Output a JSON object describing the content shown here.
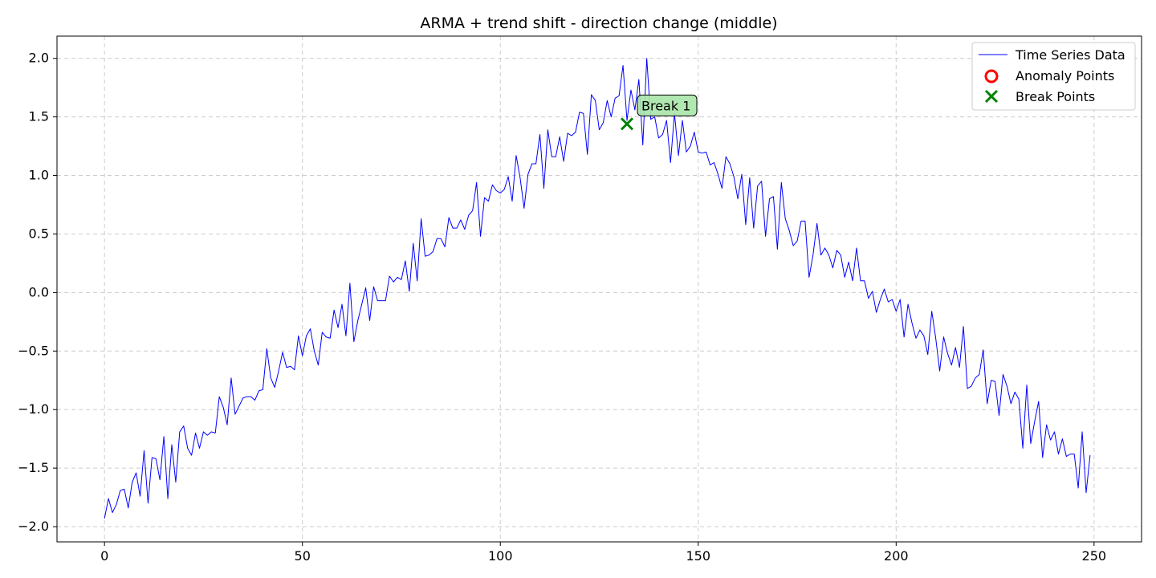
{
  "chart_data": {
    "type": "line",
    "title": "ARMA + trend shift - direction change (middle)",
    "xlabel": "",
    "ylabel": "",
    "xlim": [
      -12,
      262
    ],
    "ylim": [
      -2.13,
      2.19
    ],
    "grid": true,
    "legend_position": "top-right",
    "x_ticks": [
      0,
      50,
      100,
      150,
      200,
      250
    ],
    "x_tick_labels": [
      "0",
      "50",
      "100",
      "150",
      "200",
      "250"
    ],
    "y_ticks": [
      -2.0,
      -1.5,
      -1.0,
      -0.5,
      0.0,
      0.5,
      1.0,
      1.5,
      2.0
    ],
    "y_tick_labels": [
      "−2.0",
      "−1.5",
      "−1.0",
      "−0.5",
      "0.0",
      "0.5",
      "1.0",
      "1.5",
      "2.0"
    ],
    "series": [
      {
        "name": "Time Series Data",
        "color": "#0000ff",
        "x_start": 0,
        "x_step": 1,
        "values": [
          -1.93,
          -1.76,
          -1.88,
          -1.81,
          -1.69,
          -1.68,
          -1.84,
          -1.62,
          -1.54,
          -1.74,
          -1.35,
          -1.8,
          -1.41,
          -1.42,
          -1.6,
          -1.23,
          -1.76,
          -1.3,
          -1.62,
          -1.19,
          -1.14,
          -1.33,
          -1.39,
          -1.2,
          -1.33,
          -1.19,
          -1.22,
          -1.19,
          -1.2,
          -0.89,
          -0.98,
          -1.13,
          -0.73,
          -1.04,
          -0.97,
          -0.9,
          -0.89,
          -0.89,
          -0.92,
          -0.84,
          -0.83,
          -0.48,
          -0.73,
          -0.81,
          -0.67,
          -0.51,
          -0.64,
          -0.63,
          -0.66,
          -0.37,
          -0.54,
          -0.37,
          -0.31,
          -0.5,
          -0.62,
          -0.34,
          -0.38,
          -0.39,
          -0.15,
          -0.3,
          -0.1,
          -0.37,
          0.08,
          -0.42,
          -0.24,
          -0.1,
          0.04,
          -0.24,
          0.05,
          -0.07,
          -0.07,
          -0.07,
          0.14,
          0.09,
          0.13,
          0.11,
          0.27,
          0.01,
          0.42,
          0.1,
          0.63,
          0.31,
          0.32,
          0.35,
          0.46,
          0.46,
          0.39,
          0.64,
          0.55,
          0.55,
          0.62,
          0.54,
          0.66,
          0.7,
          0.94,
          0.48,
          0.81,
          0.78,
          0.92,
          0.87,
          0.85,
          0.88,
          0.99,
          0.78,
          1.17,
          0.98,
          0.72,
          1.01,
          1.1,
          1.1,
          1.35,
          0.89,
          1.39,
          1.16,
          1.16,
          1.33,
          1.12,
          1.36,
          1.34,
          1.37,
          1.54,
          1.53,
          1.18,
          1.69,
          1.64,
          1.39,
          1.45,
          1.64,
          1.5,
          1.66,
          1.68,
          1.94,
          1.47,
          1.73,
          1.56,
          1.82,
          1.26,
          2.0,
          1.48,
          1.5,
          1.32,
          1.35,
          1.47,
          1.11,
          1.53,
          1.17,
          1.47,
          1.2,
          1.25,
          1.37,
          1.2,
          1.19,
          1.2,
          1.09,
          1.11,
          1.01,
          0.89,
          1.16,
          1.1,
          0.99,
          0.8,
          1.01,
          0.58,
          0.98,
          0.55,
          0.91,
          0.95,
          0.48,
          0.8,
          0.82,
          0.37,
          0.94,
          0.63,
          0.53,
          0.4,
          0.44,
          0.61,
          0.61,
          0.13,
          0.32,
          0.59,
          0.32,
          0.38,
          0.32,
          0.21,
          0.36,
          0.32,
          0.13,
          0.26,
          0.1,
          0.38,
          0.1,
          0.1,
          -0.05,
          0.01,
          -0.17,
          -0.06,
          0.03,
          -0.08,
          -0.06,
          -0.16,
          -0.06,
          -0.38,
          -0.1,
          -0.26,
          -0.39,
          -0.32,
          -0.37,
          -0.53,
          -0.16,
          -0.39,
          -0.67,
          -0.38,
          -0.52,
          -0.62,
          -0.47,
          -0.64,
          -0.29,
          -0.82,
          -0.8,
          -0.73,
          -0.7,
          -0.49,
          -0.95,
          -0.75,
          -0.76,
          -1.05,
          -0.7,
          -0.8,
          -0.95,
          -0.85,
          -0.91,
          -1.33,
          -0.79,
          -1.29,
          -1.1,
          -0.93,
          -1.41,
          -1.13,
          -1.26,
          -1.19,
          -1.38,
          -1.25,
          -1.4,
          -1.38,
          -1.38,
          -1.67,
          -1.19,
          -1.71,
          -1.39
        ]
      },
      {
        "name": "Anomaly Points",
        "color": "#ff0000",
        "points": []
      },
      {
        "name": "Break Points",
        "color": "#008000",
        "points": [
          {
            "x": 132,
            "y": 1.44
          }
        ]
      }
    ],
    "annotations": [
      {
        "text": "Break 1",
        "x": 132,
        "y": 1.44,
        "box_color": "#a8e6a8"
      }
    ]
  }
}
